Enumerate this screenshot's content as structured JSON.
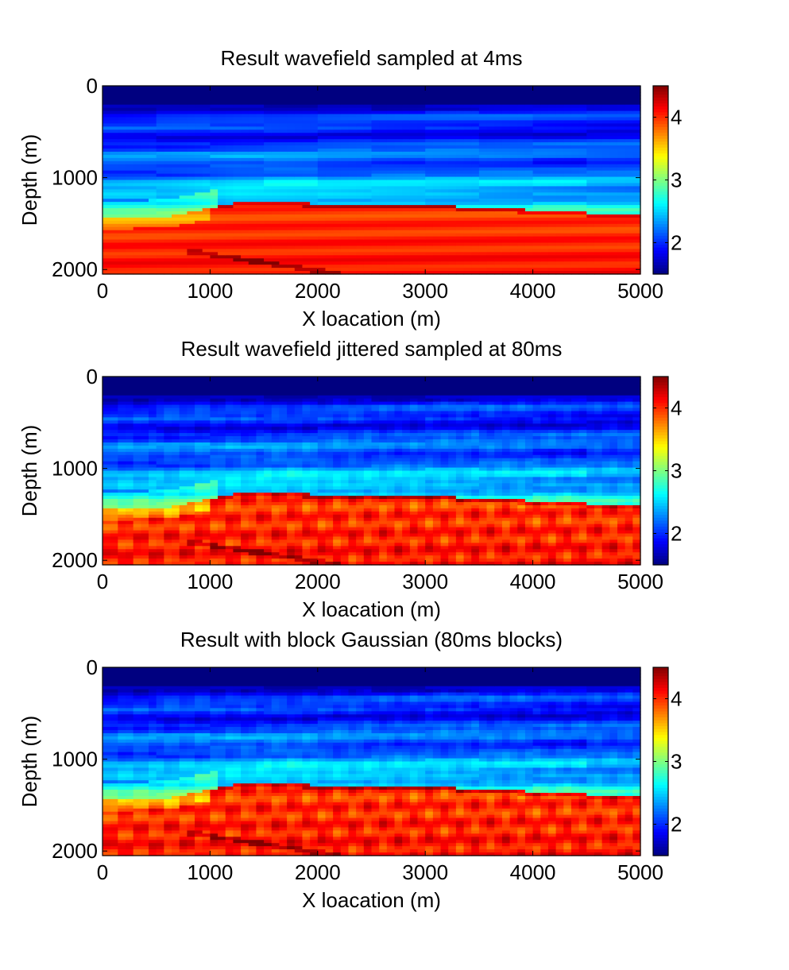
{
  "chart_data": [
    {
      "type": "heatmap",
      "title": "Result wavefield sampled at 4ms",
      "xlabel": "X loacation (m)",
      "ylabel": "Depth (m)",
      "xlim": [
        0,
        5000
      ],
      "ylim": [
        2050,
        0
      ],
      "xticks": [
        0,
        1000,
        2000,
        3000,
        4000,
        5000
      ],
      "yticks": [
        0,
        1000,
        2000
      ],
      "colorbar": {
        "ticks": [
          2,
          3,
          4
        ],
        "range": [
          1.5,
          4.5
        ],
        "colormap": "jet"
      },
      "variant": "smooth",
      "interface_depth_m": [
        [
          0,
          1450
        ],
        [
          600,
          1420
        ],
        [
          1250,
          1270
        ],
        [
          3000,
          1300
        ],
        [
          5000,
          1410
        ]
      ]
    },
    {
      "type": "heatmap",
      "title": "Result wavefield jittered sampled at 80ms",
      "xlabel": "X loacation (m)",
      "ylabel": "Depth (m)",
      "xlim": [
        0,
        5000
      ],
      "ylim": [
        2050,
        0
      ],
      "xticks": [
        0,
        1000,
        2000,
        3000,
        4000,
        5000
      ],
      "yticks": [
        0,
        1000,
        2000
      ],
      "colorbar": {
        "ticks": [
          2,
          3,
          4
        ],
        "range": [
          1.5,
          4.5
        ],
        "colormap": "jet"
      },
      "variant": "jittered",
      "interface_depth_m": [
        [
          0,
          1450
        ],
        [
          600,
          1420
        ],
        [
          1250,
          1270
        ],
        [
          3000,
          1300
        ],
        [
          5000,
          1410
        ]
      ]
    },
    {
      "type": "heatmap",
      "title": "Result with block Gaussian (80ms blocks)",
      "xlabel": "X loacation (m)",
      "ylabel": "Depth (m)",
      "xlim": [
        0,
        5000
      ],
      "ylim": [
        2050,
        0
      ],
      "xticks": [
        0,
        1000,
        2000,
        3000,
        4000,
        5000
      ],
      "yticks": [
        0,
        1000,
        2000
      ],
      "colorbar": {
        "ticks": [
          2,
          3,
          4
        ],
        "range": [
          1.5,
          4.5
        ],
        "colormap": "jet"
      },
      "variant": "block",
      "interface_depth_m": [
        [
          0,
          1450
        ],
        [
          600,
          1420
        ],
        [
          1250,
          1270
        ],
        [
          3000,
          1300
        ],
        [
          5000,
          1410
        ]
      ]
    }
  ]
}
